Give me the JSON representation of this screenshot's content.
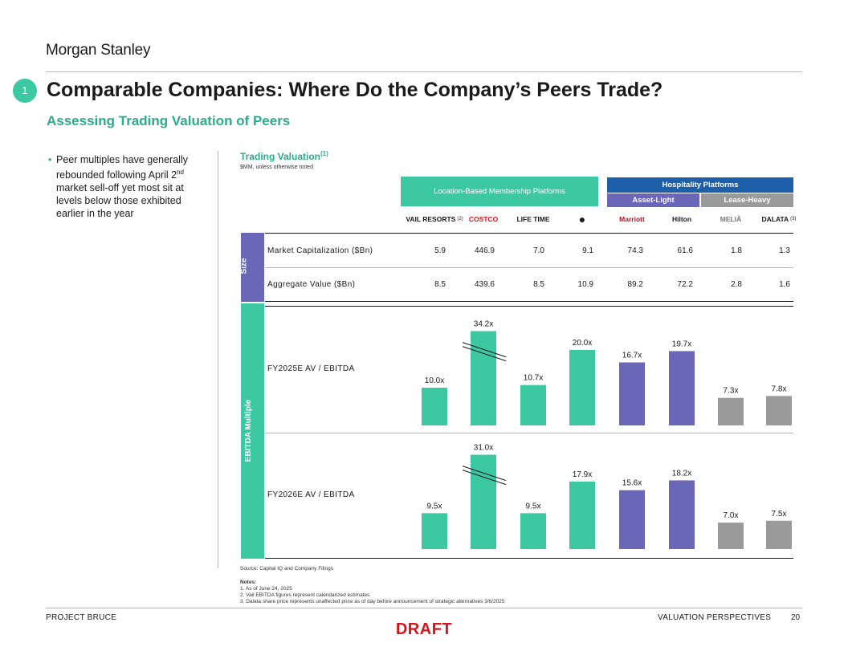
{
  "brand": "Morgan Stanley",
  "section_number": "1",
  "title": "Comparable Companies: Where Do the Company’s Peers Trade?",
  "subtitle": "Assessing Trading Valuation of Peers",
  "bullet": {
    "line1": "Peer multiples have generally rebounded following April 2",
    "sup": "nd",
    "line2": " market sell-off yet most sit at levels below those exhibited earlier in the year"
  },
  "trading_valuation": {
    "title": "Trading Valuation",
    "title_note": "(1)",
    "units": "$MM, unless otherwise noted"
  },
  "headers": {
    "location_based": "Location-Based Membership Platforms",
    "hospitality": "Hospitality Platforms",
    "asset_light": "Asset-Light",
    "lease_heavy": "Lease-Heavy"
  },
  "companies": [
    {
      "logo": "VAIL RESORTS",
      "note": "(2)",
      "color": "#1a1a1a"
    },
    {
      "logo": "COSTCO",
      "note": "",
      "color": "#d8131c"
    },
    {
      "logo": "LIFE TIME",
      "note": "",
      "color": "#1a1a1a"
    },
    {
      "logo": "●",
      "note": "",
      "color": "#1a1a1a"
    },
    {
      "logo": "Marriott",
      "note": "",
      "color": "#b5121b"
    },
    {
      "logo": "Hilton",
      "note": "",
      "color": "#1a1a1a"
    },
    {
      "logo": "MELIÃ",
      "note": "",
      "color": "#777777"
    },
    {
      "logo": "DALATA",
      "note": "(3)",
      "color": "#1a1a1a"
    }
  ],
  "side_labels": {
    "size": "Size",
    "ebitda": "EBITDA Multiple"
  },
  "rows": {
    "market_cap": {
      "label": "Market Capitalization ($Bn)",
      "values": [
        "5.9",
        "446.9",
        "7.0",
        "9.1",
        "74.3",
        "61.6",
        "1.8",
        "1.3"
      ]
    },
    "aggregate_value": {
      "label": "Aggregate Value ($Bn)",
      "values": [
        "8.5",
        "439.6",
        "8.5",
        "10.9",
        "89.2",
        "72.2",
        "2.8",
        "1.6"
      ]
    }
  },
  "colors": {
    "green": "#3cc8a0",
    "purple": "#6a67b8",
    "gray": "#9a9a9a",
    "blue": "#1d5fa8",
    "accent_text": "#2aab8b",
    "draft": "#d8131c"
  },
  "chart_data": [
    {
      "type": "bar",
      "row_label": "FY2025E AV / EBITDA",
      "categories": [
        "Vail Resorts",
        "Costco",
        "Life Time",
        "Planet Fitness",
        "Marriott",
        "Hilton",
        "Meliá",
        "Dalata"
      ],
      "values": [
        10.0,
        34.2,
        10.7,
        20.0,
        16.7,
        19.7,
        7.3,
        7.8
      ],
      "labels": [
        "10.0x",
        "34.2x",
        "10.7x",
        "20.0x",
        "16.7x",
        "19.7x",
        "7.3x",
        "7.8x"
      ],
      "bar_colors": [
        "green",
        "green",
        "green",
        "green",
        "purple",
        "purple",
        "gray",
        "gray"
      ],
      "axis_break": "Costco"
    },
    {
      "type": "bar",
      "row_label": "FY2026E AV / EBITDA",
      "categories": [
        "Vail Resorts",
        "Costco",
        "Life Time",
        "Planet Fitness",
        "Marriott",
        "Hilton",
        "Meliá",
        "Dalata"
      ],
      "values": [
        9.5,
        31.0,
        9.5,
        17.9,
        15.6,
        18.2,
        7.0,
        7.5
      ],
      "labels": [
        "9.5x",
        "31.0x",
        "9.5x",
        "17.9x",
        "15.6x",
        "18.2x",
        "7.0x",
        "7.5x"
      ],
      "bar_colors": [
        "green",
        "green",
        "green",
        "green",
        "purple",
        "purple",
        "gray",
        "gray"
      ],
      "axis_break": "Costco"
    }
  ],
  "footnotes": {
    "source": "Source: Capital IQ and Company Filings",
    "notes_title": "Notes:",
    "notes": [
      "1.   As of June 24, 2025",
      "2.   Vail EBITDA figures represent calendarized estimates",
      "3.   Dalata share price represents unaffected price as of day before announcement of strategic alternatives 3/6/2025"
    ]
  },
  "footer": {
    "left": "PROJECT BRUCE",
    "right": "VALUATION PERSPECTIVES",
    "page": "20"
  },
  "watermark": "DRAFT"
}
